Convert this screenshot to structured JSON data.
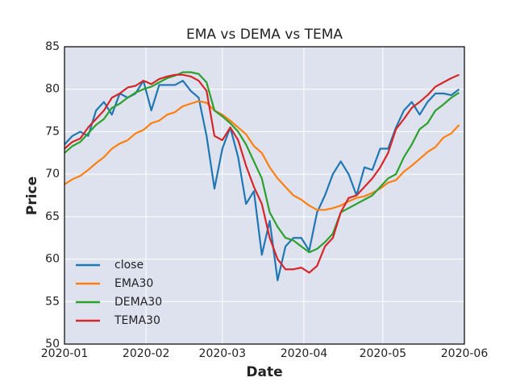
{
  "chart_data": {
    "type": "line",
    "title": "EMA vs DEMA vs TEMA",
    "x_label": "Date",
    "y_label": "Price",
    "x": [
      0,
      3,
      6,
      9,
      12,
      15,
      18,
      21,
      24,
      27,
      30,
      33,
      36,
      39,
      42,
      45,
      48,
      51,
      54,
      57,
      60,
      63,
      66,
      69,
      72,
      75,
      78,
      81,
      84,
      87,
      90,
      93,
      96,
      99,
      102,
      105,
      108,
      111,
      114,
      117,
      120,
      123,
      126,
      129,
      132,
      135,
      138,
      141,
      144,
      147,
      150
    ],
    "xlim": [
      0,
      152
    ],
    "xticks": [
      {
        "value": 0,
        "label": "2020-01"
      },
      {
        "value": 31,
        "label": "2020-02"
      },
      {
        "value": 60,
        "label": "2020-03"
      },
      {
        "value": 91,
        "label": "2020-04"
      },
      {
        "value": 121,
        "label": "2020-05"
      },
      {
        "value": 152,
        "label": "2020-06"
      }
    ],
    "ylim": [
      50,
      85
    ],
    "yticks": [
      50,
      55,
      60,
      65,
      70,
      75,
      80,
      85
    ],
    "grid": true,
    "legend": "lower left",
    "series": [
      {
        "name": "close",
        "color": "#1f77b4",
        "values": [
          73.5,
          74.5,
          75,
          74.5,
          77.5,
          78.5,
          77,
          79.5,
          79,
          79.5,
          81,
          77.5,
          80.5,
          80.5,
          80.5,
          81,
          79.8,
          79,
          74.5,
          68.3,
          73,
          75.5,
          72,
          66.5,
          68,
          60.5,
          64.5,
          57.5,
          61.5,
          62.5,
          62.5,
          61,
          65.5,
          67.5,
          70,
          71.5,
          70,
          67.5,
          70.8,
          70.5,
          73,
          73,
          75.5,
          77.5,
          78.5,
          77,
          78.5,
          79.5,
          79.5,
          79.3,
          80
        ]
      },
      {
        "name": "EMA30",
        "color": "#ff7f0e",
        "values": [
          68.8,
          69.4,
          69.8,
          70.5,
          71.3,
          72,
          73,
          73.6,
          74,
          74.8,
          75.2,
          76,
          76.3,
          77,
          77.3,
          78,
          78.3,
          78.6,
          78.4,
          77.5,
          77,
          76.3,
          75.5,
          74.7,
          73.3,
          72.5,
          70.8,
          69.5,
          68.5,
          67.5,
          67,
          66.3,
          65.8,
          65.8,
          66,
          66.3,
          66.8,
          67.2,
          67.4,
          67.8,
          68.3,
          69,
          69.3,
          70.3,
          71,
          71.8,
          72.6,
          73.2,
          74.3,
          74.8,
          75.8
        ]
      },
      {
        "name": "DEMA30",
        "color": "#2ca02c",
        "values": [
          72.5,
          73.3,
          73.8,
          74.8,
          75.8,
          76.5,
          77.8,
          78.3,
          79,
          79.6,
          80,
          80.3,
          80.8,
          81.3,
          81.6,
          82,
          82,
          81.8,
          80.8,
          77.5,
          76.8,
          76,
          75,
          73.5,
          71.5,
          69.5,
          65.5,
          63.8,
          62.5,
          62.2,
          61.5,
          60.8,
          61.2,
          62,
          63,
          65.5,
          66,
          66.5,
          67,
          67.5,
          68.5,
          69.5,
          70,
          72,
          73.5,
          75.3,
          76,
          77.5,
          78.2,
          79,
          79.6
        ]
      },
      {
        "name": "TEMA30",
        "color": "#d62728",
        "values": [
          73,
          73.8,
          74.2,
          75.5,
          76.5,
          77.5,
          79,
          79.5,
          80.2,
          80.4,
          81,
          80.6,
          81.2,
          81.5,
          81.7,
          81.7,
          81.5,
          81,
          79.8,
          74.5,
          74,
          75.5,
          74,
          71,
          68.5,
          66.5,
          62.5,
          60,
          58.8,
          58.8,
          59,
          58.4,
          59.2,
          61.5,
          62.5,
          65.5,
          67.2,
          67.5,
          68.5,
          69.5,
          70.8,
          72.5,
          75.3,
          76.5,
          77.8,
          78.5,
          79.3,
          80.3,
          80.8,
          81.3,
          81.7
        ]
      }
    ]
  }
}
